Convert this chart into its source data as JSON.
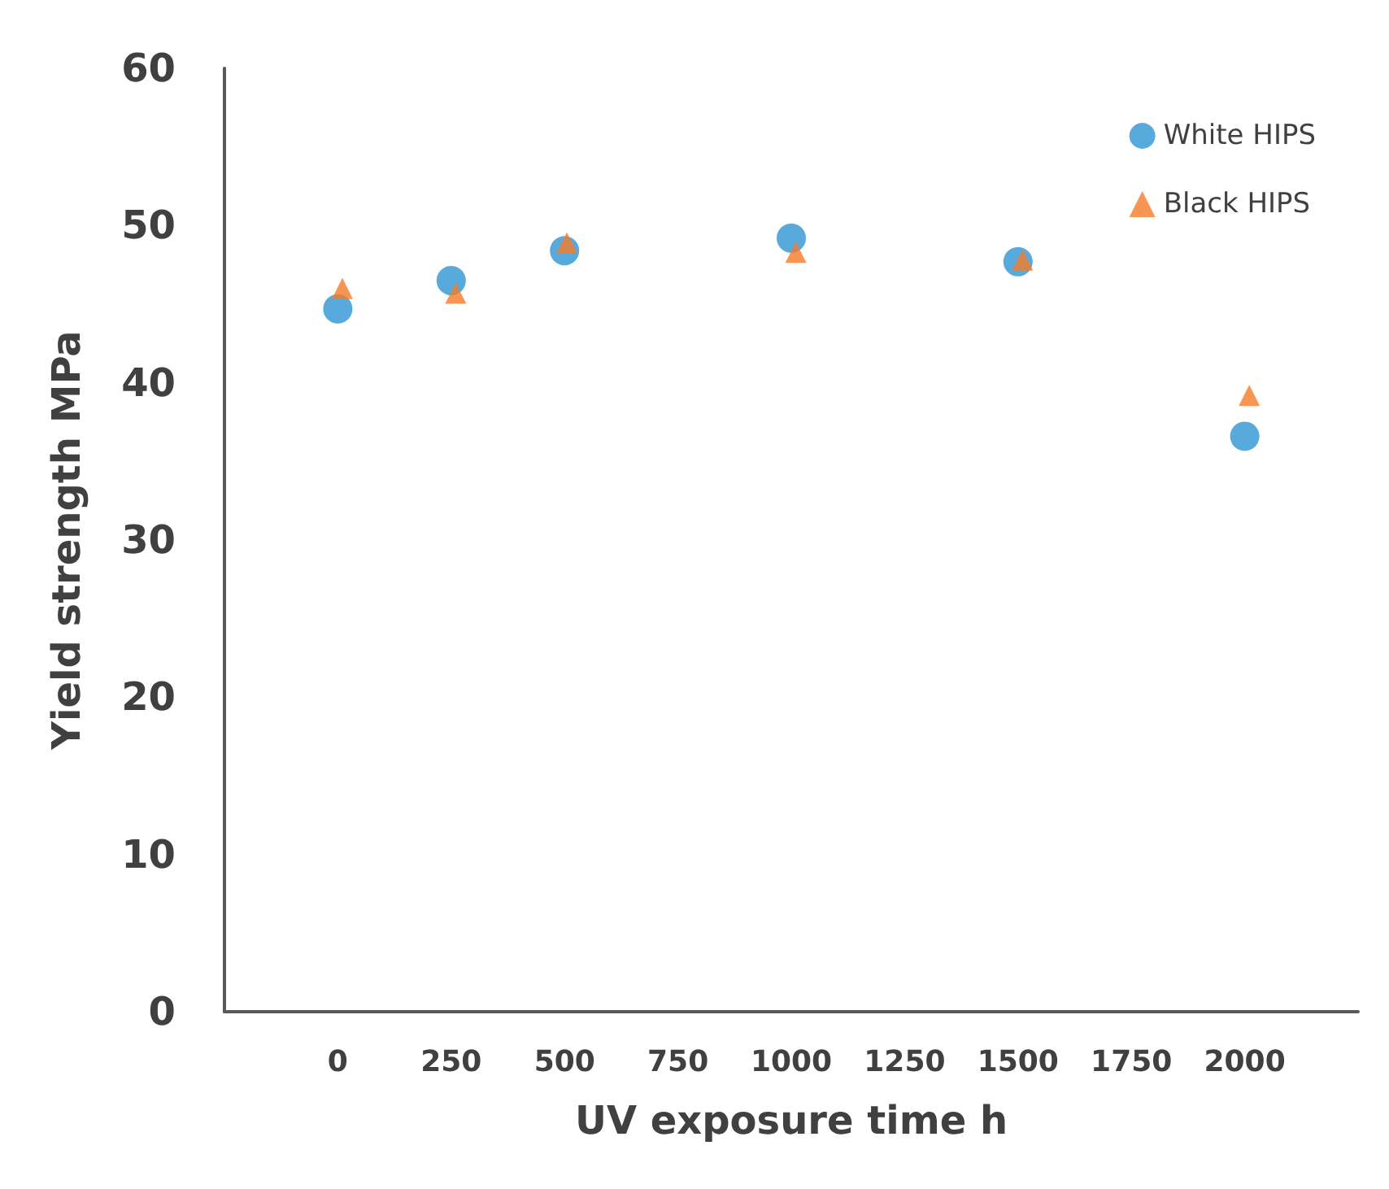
{
  "chart_data": {
    "type": "scatter",
    "xlabel": "UV exposure time h",
    "ylabel": "Yield strength MPa",
    "series": [
      {
        "name": "White HIPS",
        "color": "#2e95d3",
        "marker": "circle",
        "x": [
          0,
          250,
          500,
          1000,
          1500,
          2000
        ],
        "values": [
          44.7,
          46.5,
          48.4,
          49.2,
          47.7,
          36.6
        ]
      },
      {
        "name": "Black HIPS",
        "color": "#f57c28",
        "marker": "triangle",
        "x": [
          10,
          260,
          505,
          1010,
          1510,
          2010
        ],
        "values": [
          46.0,
          45.7,
          48.9,
          48.3,
          47.8,
          39.2
        ]
      }
    ],
    "xlim": [
      -250,
      2250
    ],
    "xticks": [
      0,
      250,
      500,
      750,
      1000,
      1250,
      1500,
      1750,
      2000
    ],
    "ylim": [
      0,
      60
    ],
    "yticks": [
      0,
      10,
      20,
      30,
      40,
      50,
      60
    ],
    "grid": false,
    "legend": "top right"
  }
}
